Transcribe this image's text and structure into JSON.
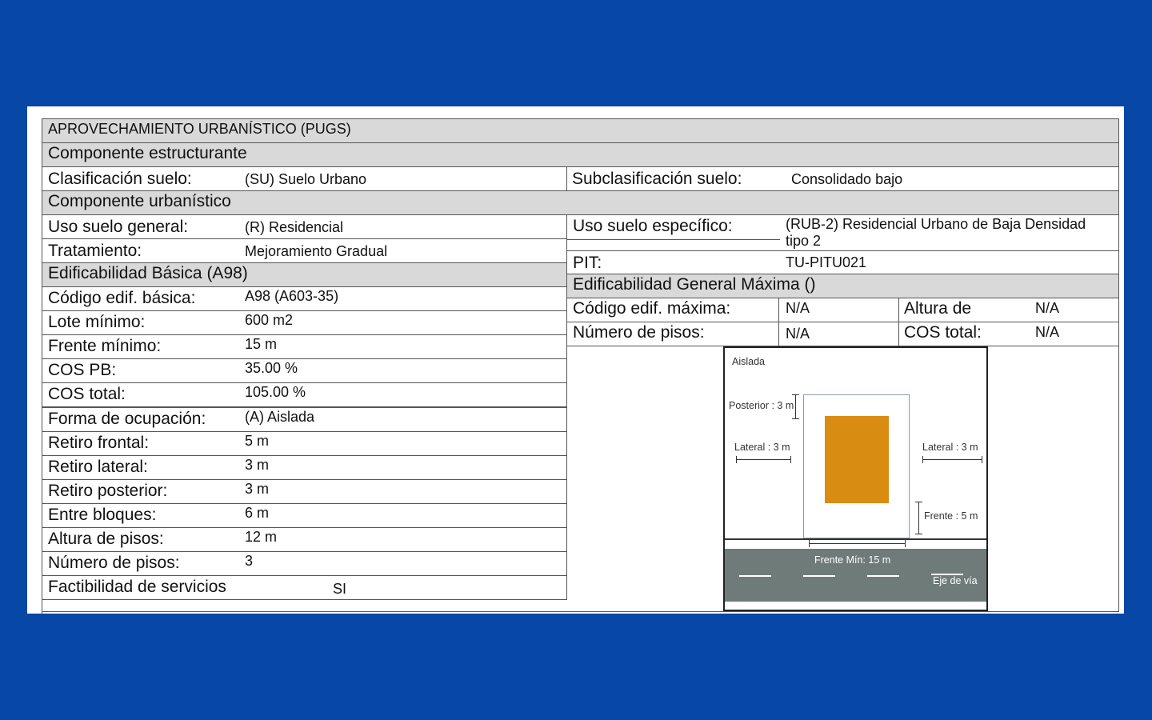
{
  "title": "APROVECHAMIENTO URBANÍSTICO (PUGS)",
  "componente_estructurante": {
    "header": "Componente  estructurante",
    "clasificacion_label": "Clasificación suelo:",
    "clasificacion_value": "(SU) Suelo Urbano",
    "subclasificacion_label": "Subclasificación suelo:",
    "subclasificacion_value": "Consolidado bajo"
  },
  "componente_urbanistico": {
    "header": "Componente  urbanístico",
    "uso_general_label": "Uso suelo general:",
    "uso_general_value": "(R) Residencial",
    "uso_especifico_label": "Uso suelo específico:",
    "uso_especifico_value_line1": "(RUB-2) Residencial Urbano de Baja Densidad",
    "uso_especifico_value_line2": "tipo 2",
    "tratamiento_label": "Tratamiento:",
    "tratamiento_value": "Mejoramiento Gradual",
    "pit_label": "PIT:",
    "pit_value": "TU-PITU021"
  },
  "edificabilidad_basica": {
    "header": "Edificabilidad Básica (A98)",
    "rows": [
      {
        "label": "Código edif. básica:",
        "value": "A98 (A603-35)"
      },
      {
        "label": "Lote mínimo:",
        "value": "600 m2"
      },
      {
        "label": "Frente mínimo:",
        "value": "15 m"
      },
      {
        "label": "COS PB:",
        "value": "35.00 %"
      },
      {
        "label": "COS total:",
        "value": "105.00 %"
      },
      {
        "label": "Forma de ocupación:",
        "value": "(A) Aislada"
      },
      {
        "label": "Retiro frontal:",
        "value": "5 m"
      },
      {
        "label": "Retiro lateral:",
        "value": "3 m"
      },
      {
        "label": "Retiro posterior:",
        "value": "3 m"
      },
      {
        "label": "Entre bloques:",
        "value": "6 m"
      },
      {
        "label": "Altura de pisos:",
        "value": "12 m"
      },
      {
        "label": "Número de pisos:",
        "value": "3"
      }
    ],
    "factibilidad_label": "Factibilidad de servicios",
    "factibilidad_value": "SI"
  },
  "edificabilidad_maxima": {
    "header": "Edificabilidad General Máxima ()",
    "codigo_label": "Código edif. máxima:",
    "codigo_value": "N/A",
    "altura_label": "Altura de",
    "altura_value": "N/A",
    "pisos_label": "Número de pisos:",
    "pisos_value": "N/A",
    "cos_label": "COS total:",
    "cos_value": "N/A"
  },
  "diagram": {
    "tipo": "Aislada",
    "posterior": "Posterior : 3 m",
    "lateral_left": "Lateral : 3 m",
    "lateral_right": "Lateral : 3 m",
    "frente": "Frente : 5 m",
    "frente_min": "Frente Mín: 15 m",
    "eje_via": "Eje de vía",
    "colors": {
      "building": "#d98c12",
      "road": "#6f7b79",
      "lot_border": "#8a9bb0"
    }
  }
}
